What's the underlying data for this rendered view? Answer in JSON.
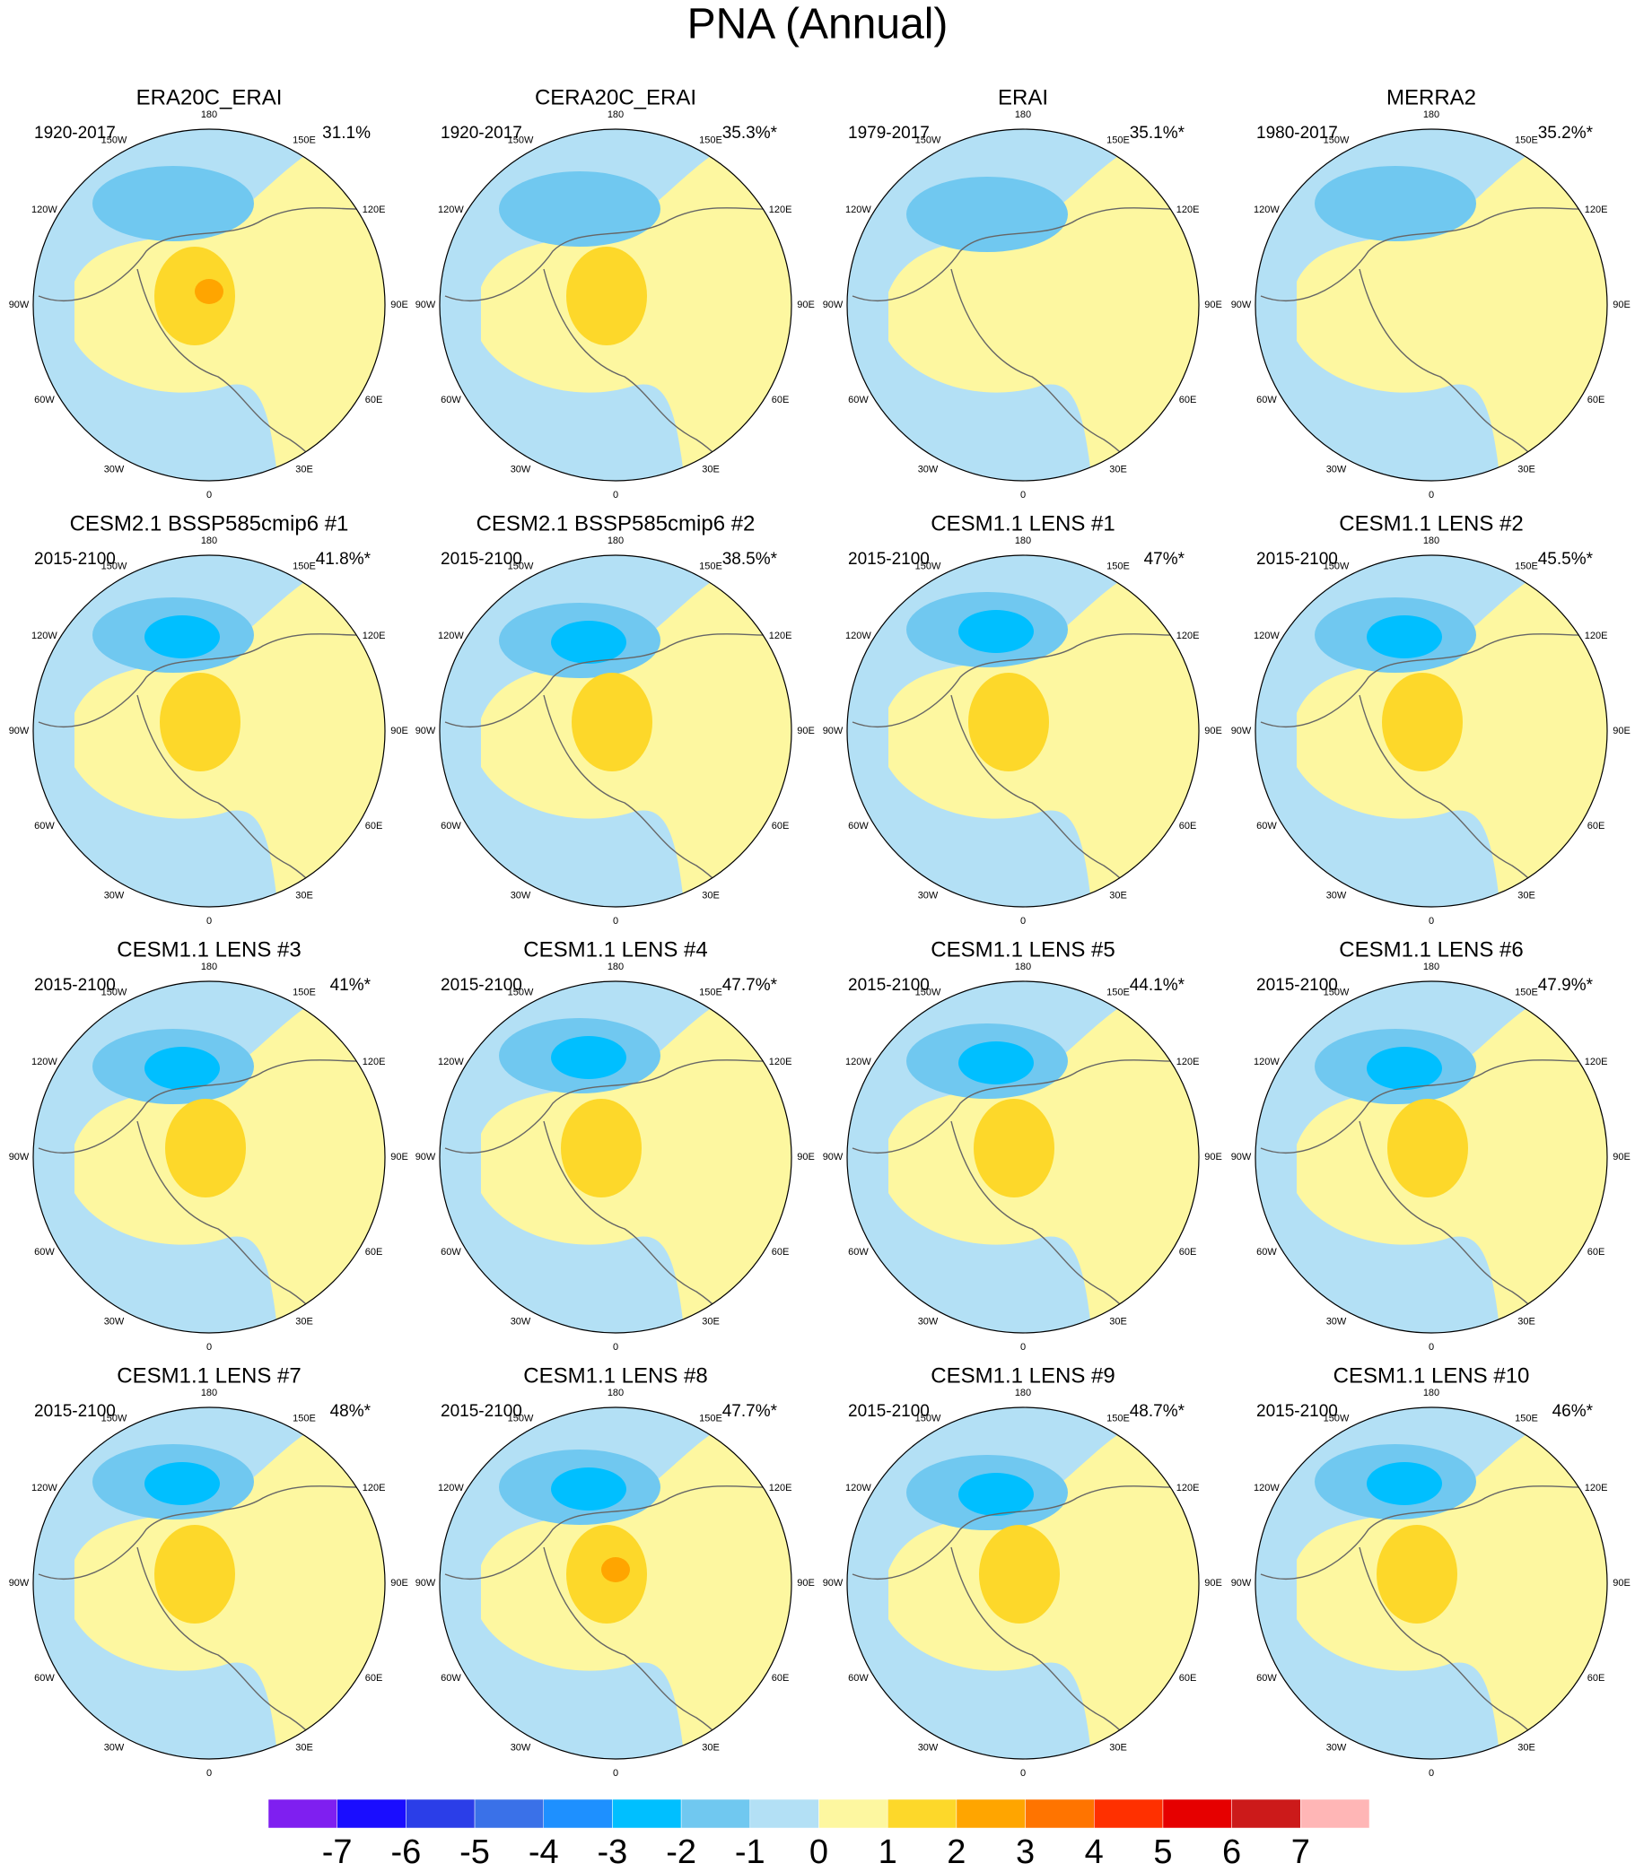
{
  "title": "PNA (Annual)",
  "panels": [
    {
      "title": "ERA20C_ERAI",
      "period": "1920-2017",
      "variance": "31.1%"
    },
    {
      "title": "CERA20C_ERAI",
      "period": "1920-2017",
      "variance": "35.3%*"
    },
    {
      "title": "ERAI",
      "period": "1979-2017",
      "variance": "35.1%*"
    },
    {
      "title": "MERRA2",
      "period": "1980-2017",
      "variance": "35.2%*"
    },
    {
      "title": "CESM2.1 BSSP585cmip6 #1",
      "period": "2015-2100",
      "variance": "41.8%*"
    },
    {
      "title": "CESM2.1 BSSP585cmip6 #2",
      "period": "2015-2100",
      "variance": "38.5%*"
    },
    {
      "title": "CESM1.1 LENS #1",
      "period": "2015-2100",
      "variance": "47%*"
    },
    {
      "title": "CESM1.1 LENS #2",
      "period": "2015-2100",
      "variance": "45.5%*"
    },
    {
      "title": "CESM1.1 LENS #3",
      "period": "2015-2100",
      "variance": "41%*"
    },
    {
      "title": "CESM1.1 LENS #4",
      "period": "2015-2100",
      "variance": "47.7%*"
    },
    {
      "title": "CESM1.1 LENS #5",
      "period": "2015-2100",
      "variance": "44.1%*"
    },
    {
      "title": "CESM1.1 LENS #6",
      "period": "2015-2100",
      "variance": "47.9%*"
    },
    {
      "title": "CESM1.1 LENS #7",
      "period": "2015-2100",
      "variance": "48%*"
    },
    {
      "title": "CESM1.1 LENS #8",
      "period": "2015-2100",
      "variance": "47.7%*"
    },
    {
      "title": "CESM1.1 LENS #9",
      "period": "2015-2100",
      "variance": "48.7%*"
    },
    {
      "title": "CESM1.1 LENS #10",
      "period": "2015-2100",
      "variance": "46%*"
    }
  ],
  "lon_labels": [
    "180",
    "150E",
    "120E",
    "90E",
    "60E",
    "30E",
    "0",
    "30W",
    "60W",
    "90W",
    "120W",
    "150W"
  ],
  "colorbar": {
    "colors": [
      "#7f1ff0",
      "#1a0dff",
      "#2b3ee8",
      "#3a71e8",
      "#1e90ff",
      "#00bfff",
      "#70c8f0",
      "#b3e0f5",
      "#fdf7a0",
      "#fdd82a",
      "#ffa500",
      "#ff7400",
      "#ff3000",
      "#e60000",
      "#cc1a1a",
      "#ffb6b6"
    ],
    "ticks": [
      -7,
      -6,
      -5,
      -4,
      -3,
      -2,
      -1,
      0,
      1,
      2,
      3,
      4,
      5,
      6,
      7
    ]
  }
}
